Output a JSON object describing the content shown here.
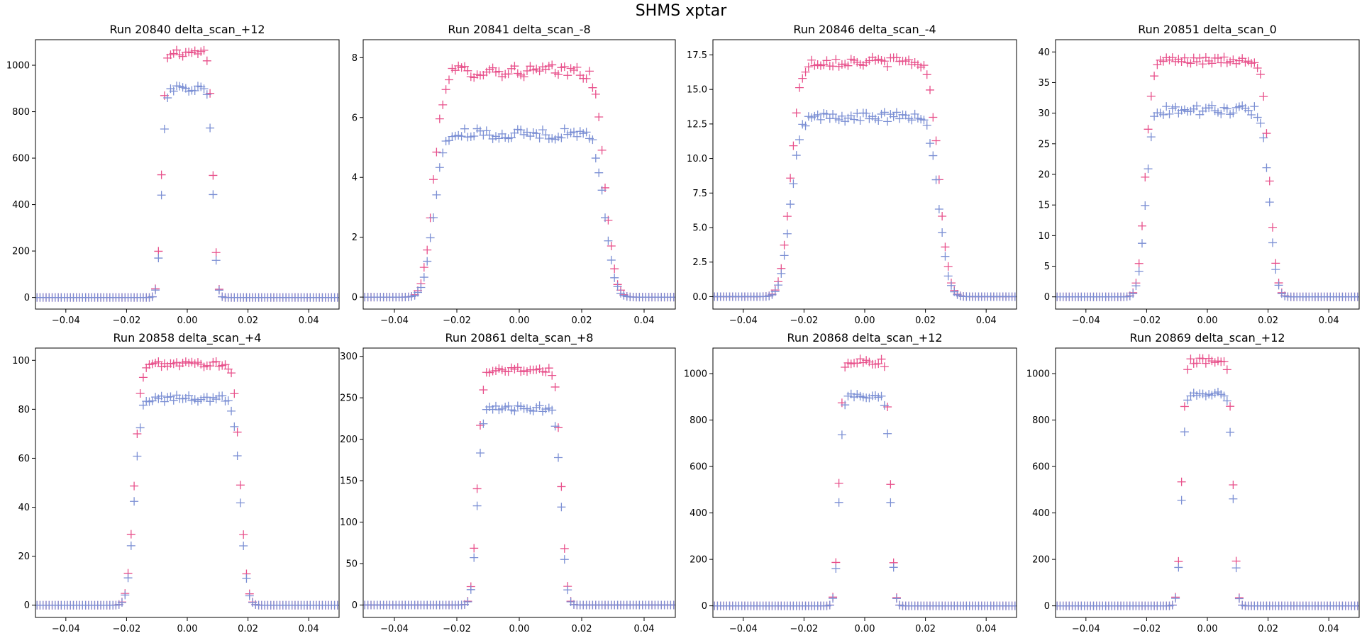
{
  "suptitle": "SHMS xptar",
  "colors": {
    "series_a": "#e8508b",
    "series_b": "#7b8fd4"
  },
  "chart_data": [
    {
      "type": "scatter",
      "marker": "plus",
      "title": "Run 20840 delta_scan_+12",
      "xlim": [
        -0.05,
        0.05
      ],
      "ylim": [
        -50,
        1110
      ],
      "xticks": [
        -0.04,
        -0.02,
        0.0,
        0.02,
        0.04
      ],
      "xtick_labels": [
        "−0.04",
        "−0.02",
        "0.00",
        "0.02",
        "0.04"
      ],
      "yticks": [
        0,
        200,
        400,
        600,
        800,
        1000
      ],
      "ytick_labels": [
        "0",
        "200",
        "400",
        "600",
        "800",
        "1000"
      ],
      "half_width": 0.0085,
      "edge": 0.0011,
      "series": [
        {
          "color": "#e8508b",
          "plateau": 1055,
          "noise": 18
        },
        {
          "color": "#7b8fd4",
          "plateau": 900,
          "noise": 15
        }
      ]
    },
    {
      "type": "scatter",
      "marker": "plus",
      "title": "Run 20841 delta_scan_-8",
      "xlim": [
        -0.05,
        0.05
      ],
      "ylim": [
        -0.4,
        8.6
      ],
      "xticks": [
        -0.04,
        -0.02,
        0.0,
        0.02,
        0.04
      ],
      "xtick_labels": [
        "−0.04",
        "−0.02",
        "0.00",
        "0.02",
        "0.04"
      ],
      "yticks": [
        0,
        2,
        4,
        6,
        8
      ],
      "ytick_labels": [
        "0",
        "2",
        "4",
        "6",
        "8"
      ],
      "half_width": 0.0275,
      "edge": 0.0026,
      "series": [
        {
          "color": "#e8508b",
          "plateau": 7.55,
          "noise": 0.22
        },
        {
          "color": "#7b8fd4",
          "plateau": 5.45,
          "noise": 0.18
        }
      ]
    },
    {
      "type": "scatter",
      "marker": "plus",
      "title": "Run 20846 delta_scan_-4",
      "xlim": [
        -0.05,
        0.05
      ],
      "ylim": [
        -0.9,
        18.6
      ],
      "xticks": [
        -0.04,
        -0.02,
        0.0,
        0.02,
        0.04
      ],
      "xtick_labels": [
        "−0.04",
        "−0.02",
        "0.00",
        "0.02",
        "0.04"
      ],
      "yticks": [
        0,
        2.5,
        5,
        7.5,
        10,
        12.5,
        15,
        17.5
      ],
      "ytick_labels": [
        "0.0",
        "2.5",
        "5.0",
        "7.5",
        "10.0",
        "12.5",
        "15.0",
        "17.5"
      ],
      "half_width": 0.0245,
      "edge": 0.0026,
      "series": [
        {
          "color": "#e8508b",
          "plateau": 17.0,
          "noise": 0.35
        },
        {
          "color": "#7b8fd4",
          "plateau": 13.0,
          "noise": 0.35
        }
      ]
    },
    {
      "type": "scatter",
      "marker": "plus",
      "title": "Run 20851 delta_scan_0",
      "xlim": [
        -0.05,
        0.05
      ],
      "ylim": [
        -2,
        42
      ],
      "xticks": [
        -0.04,
        -0.02,
        0.0,
        0.02,
        0.04
      ],
      "xtick_labels": [
        "−0.04",
        "−0.02",
        "0.00",
        "0.02",
        "0.04"
      ],
      "yticks": [
        0,
        5,
        10,
        15,
        20,
        25,
        30,
        35,
        40
      ],
      "ytick_labels": [
        "0",
        "5",
        "10",
        "15",
        "20",
        "25",
        "30",
        "35",
        "40"
      ],
      "half_width": 0.0205,
      "edge": 0.0019,
      "series": [
        {
          "color": "#e8508b",
          "plateau": 38.6,
          "noise": 0.6
        },
        {
          "color": "#7b8fd4",
          "plateau": 30.5,
          "noise": 0.8
        }
      ]
    },
    {
      "type": "scatter",
      "marker": "plus",
      "title": "Run 20858 delta_scan_+4",
      "xlim": [
        -0.05,
        0.05
      ],
      "ylim": [
        -5,
        105
      ],
      "xticks": [
        -0.04,
        -0.02,
        0.0,
        0.02,
        0.04
      ],
      "xtick_labels": [
        "−0.04",
        "−0.02",
        "0.00",
        "0.02",
        "0.04"
      ],
      "yticks": [
        0,
        20,
        40,
        60,
        80,
        100
      ],
      "ytick_labels": [
        "0",
        "20",
        "40",
        "60",
        "80",
        "100"
      ],
      "half_width": 0.0175,
      "edge": 0.0018,
      "series": [
        {
          "color": "#e8508b",
          "plateau": 98.5,
          "noise": 1.2
        },
        {
          "color": "#7b8fd4",
          "plateau": 84.5,
          "noise": 1.5
        }
      ]
    },
    {
      "type": "scatter",
      "marker": "plus",
      "title": "Run 20861 delta_scan_+8",
      "xlim": [
        -0.05,
        0.05
      ],
      "ylim": [
        -15,
        310
      ],
      "xticks": [
        -0.04,
        -0.02,
        0.0,
        0.02,
        0.04
      ],
      "xtick_labels": [
        "−0.04",
        "−0.02",
        "0.00",
        "0.02",
        "0.04"
      ],
      "yticks": [
        0,
        50,
        100,
        150,
        200,
        250,
        300
      ],
      "ytick_labels": [
        "0",
        "50",
        "100",
        "150",
        "200",
        "250",
        "300"
      ],
      "half_width": 0.0135,
      "edge": 0.0014,
      "series": [
        {
          "color": "#e8508b",
          "plateau": 284,
          "noise": 4
        },
        {
          "color": "#7b8fd4",
          "plateau": 237,
          "noise": 3.5
        }
      ]
    },
    {
      "type": "scatter",
      "marker": "plus",
      "title": "Run 20868 delta_scan_+12",
      "xlim": [
        -0.05,
        0.05
      ],
      "ylim": [
        -50,
        1110
      ],
      "xticks": [
        -0.04,
        -0.02,
        0.0,
        0.02,
        0.04
      ],
      "xtick_labels": [
        "−0.04",
        "−0.02",
        "0.00",
        "0.02",
        "0.04"
      ],
      "yticks": [
        0,
        200,
        400,
        600,
        800,
        1000
      ],
      "ytick_labels": [
        "0",
        "200",
        "400",
        "600",
        "800",
        "1000"
      ],
      "half_width": 0.0085,
      "edge": 0.0011,
      "series": [
        {
          "color": "#e8508b",
          "plateau": 1055,
          "noise": 15
        },
        {
          "color": "#7b8fd4",
          "plateau": 905,
          "noise": 12
        }
      ]
    },
    {
      "type": "scatter",
      "marker": "plus",
      "title": "Run 20869 delta_scan_+12",
      "xlim": [
        -0.05,
        0.05
      ],
      "ylim": [
        -50,
        1110
      ],
      "xticks": [
        -0.04,
        -0.02,
        0.0,
        0.02,
        0.04
      ],
      "xtick_labels": [
        "−0.04",
        "−0.02",
        "0.00",
        "0.02",
        "0.04"
      ],
      "yticks": [
        0,
        200,
        400,
        600,
        800,
        1000
      ],
      "ytick_labels": [
        "0",
        "200",
        "400",
        "600",
        "800",
        "1000"
      ],
      "half_width": 0.0085,
      "edge": 0.0011,
      "series": [
        {
          "color": "#e8508b",
          "plateau": 1055,
          "noise": 12
        },
        {
          "color": "#7b8fd4",
          "plateau": 912,
          "noise": 9
        }
      ]
    }
  ]
}
